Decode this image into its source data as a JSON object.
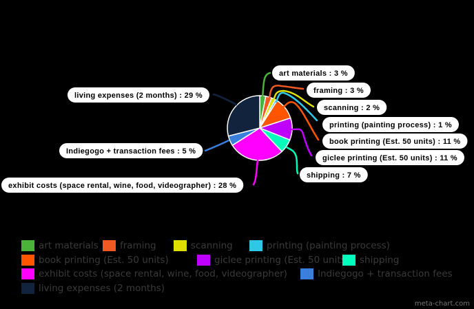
{
  "chart_data": {
    "type": "pie",
    "title": "",
    "categories": [
      "art materials",
      "framing",
      "scanning",
      "printing (painting process)",
      "book printing (Est. 50 units)",
      "giclee printing (Est. 50 units)",
      "shipping",
      "exhibit costs (space rental, wine, food, videographer)",
      "Indiegogo + transaction fees",
      "living expenses (2 months)"
    ],
    "values": [
      3,
      3,
      2,
      1,
      11,
      11,
      7,
      28,
      5,
      29
    ],
    "unit": "%",
    "colors": [
      "#4cb33a",
      "#f05a22",
      "#e0e000",
      "#2ec8e6",
      "#ff5500",
      "#c000ff",
      "#00ffbb",
      "#ff00ff",
      "#3a7fdc",
      "#12243d"
    ],
    "legend_position": "bottom",
    "data_labels": [
      "art materials : 3 %",
      "framing : 3 %",
      "scanning : 2 %",
      "printing (painting process) : 1 %",
      "book printing (Est. 50 units) : 11 %",
      "giclee printing (Est. 50 units) : 11 %",
      "shipping : 7 %",
      "exhibit costs (space rental, wine, food, videographer) : 28 %",
      "Indiegogo + transaction fees : 5 %",
      "living expenses (2 months) : 29 %"
    ]
  },
  "legend": {
    "items": [
      {
        "label": "art materials",
        "color": "#4cb33a"
      },
      {
        "label": "framing",
        "color": "#f05a22"
      },
      {
        "label": "scanning",
        "color": "#e0e000"
      },
      {
        "label": "printing (painting process)",
        "color": "#2ec8e6"
      },
      {
        "label": "book printing (Est. 50 units)",
        "color": "#ff5500"
      },
      {
        "label": "giclee printing (Est. 50 units)",
        "color": "#c000ff"
      },
      {
        "label": "shipping",
        "color": "#00ffbb"
      },
      {
        "label": "exhibit costs (space rental, wine, food, videographer)",
        "color": "#ff00ff"
      },
      {
        "label": "Indiegogo + transaction fees",
        "color": "#3a7fdc"
      },
      {
        "label": "living expenses (2 months)",
        "color": "#12243d"
      }
    ]
  },
  "watermark": "meta-chart.com"
}
